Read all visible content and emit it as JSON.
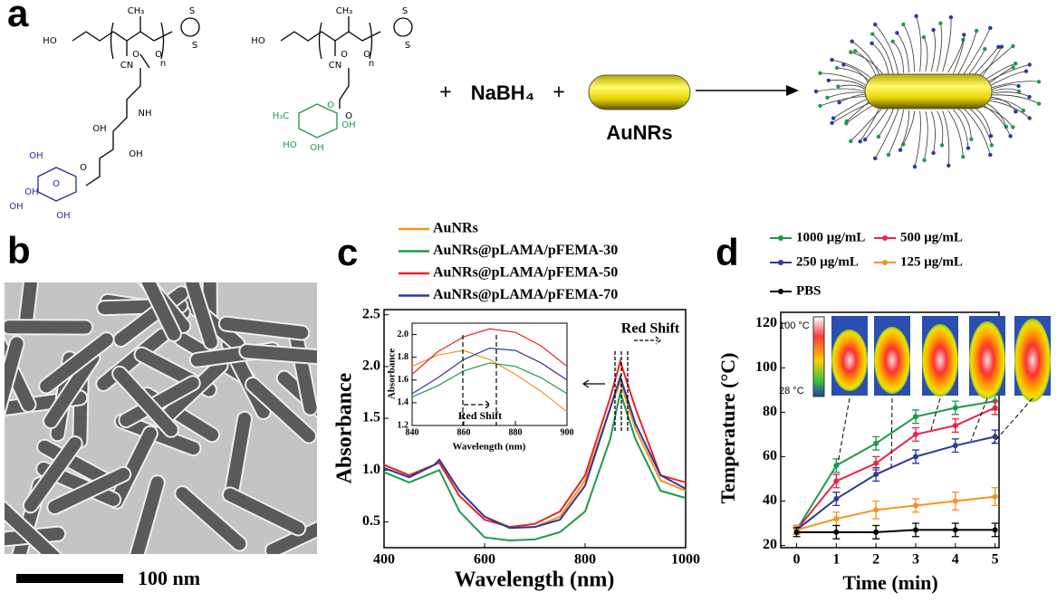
{
  "panel_labels": [
    "a",
    "b",
    "c",
    "d"
  ],
  "scheme": {
    "polymer_1": [
      "HO",
      "CH₃",
      "CN",
      "O",
      "O",
      "n",
      "S",
      "S",
      "NH",
      "OH",
      "OH",
      "O",
      "OH",
      "O",
      "OH",
      "OH",
      "OH"
    ],
    "polymer_2": [
      "HO",
      "CH₃",
      "CN",
      "O",
      "O",
      "n",
      "S",
      "S",
      "O",
      "H₃C",
      "O",
      "OH",
      "HO",
      "OH"
    ],
    "operators": [
      "+",
      "+"
    ],
    "reagent": "NaBH₄",
    "rod_label": "AuNRs"
  },
  "scale_bar": "100 nm",
  "thermal_scale": [
    "100 °C",
    "28 °C"
  ],
  "chart_data": [
    {
      "type": "line",
      "x_label": "Wavelength (nm)",
      "y_label": "Absorbance",
      "annotation": "Red Shift",
      "x": [
        400,
        450,
        500,
        510,
        550,
        600,
        650,
        700,
        750,
        800,
        850,
        870,
        900,
        950,
        1000
      ],
      "series": [
        {
          "name": "AuNRs",
          "color": "#f7921e",
          "values": [
            1.05,
            0.95,
            1.05,
            1.08,
            0.8,
            0.55,
            0.45,
            0.45,
            0.55,
            0.9,
            1.6,
            1.85,
            1.4,
            0.9,
            0.8
          ]
        },
        {
          "name": "AuNRs@pLAMA/pFEMA-30",
          "color": "#1d9a49",
          "values": [
            0.98,
            0.88,
            0.98,
            1.0,
            0.6,
            0.35,
            0.32,
            0.33,
            0.4,
            0.6,
            1.3,
            1.75,
            1.3,
            0.8,
            0.73
          ]
        },
        {
          "name": "AuNRs@pLAMA/pFEMA-50",
          "color": "#ec2227",
          "values": [
            1.05,
            0.95,
            1.05,
            1.07,
            0.75,
            0.52,
            0.45,
            0.48,
            0.6,
            0.95,
            1.7,
            2.05,
            1.6,
            0.95,
            0.88
          ]
        },
        {
          "name": "AuNRs@pLAMA/pFEMA-70",
          "color": "#2b3a9a",
          "values": [
            1.02,
            0.93,
            1.05,
            1.1,
            0.8,
            0.55,
            0.44,
            0.45,
            0.52,
            0.85,
            1.6,
            1.9,
            1.45,
            0.95,
            0.82
          ]
        }
      ],
      "xlim": [
        400,
        1000
      ],
      "xticks": [
        400,
        600,
        800,
        1000
      ],
      "ylim": [
        0.25,
        2.55
      ],
      "yticks": [
        0.5,
        {
          "value": 1,
          "label": "1.0"
        },
        1.5,
        {
          "value": 2,
          "label": "2.0"
        },
        2.5
      ]
    },
    {
      "type": "line",
      "x_label": "Wavelength (nm)",
      "y_label": "Absorbance",
      "annotation": "Red Shift",
      "x": [
        840,
        850,
        860,
        870,
        880,
        890,
        900
      ],
      "series": [
        {
          "color": "#f7921e",
          "values": [
            1.72,
            1.82,
            1.86,
            1.78,
            1.65,
            1.5,
            1.32
          ]
        },
        {
          "color": "#1d9a49",
          "values": [
            1.45,
            1.55,
            1.68,
            1.75,
            1.72,
            1.62,
            1.48
          ]
        },
        {
          "color": "#ec2227",
          "values": [
            1.65,
            1.85,
            1.98,
            2.05,
            2.02,
            1.9,
            1.72
          ]
        },
        {
          "color": "#2b3a9a",
          "values": [
            1.48,
            1.62,
            1.78,
            1.88,
            1.86,
            1.75,
            1.6
          ]
        }
      ],
      "xlim": [
        840,
        900
      ],
      "xticks": [
        840,
        860,
        880,
        900
      ],
      "ylim": [
        1.2,
        2.1
      ],
      "yticks": [
        1.2,
        1.4,
        1.6,
        1.8,
        {
          "value": 2,
          "label": "2.0"
        }
      ]
    },
    {
      "type": "line",
      "x_label": "Time (min)",
      "y_label": "Temperature (°C)",
      "x": [
        0,
        1,
        2,
        3,
        4,
        5
      ],
      "series": [
        {
          "name": "1000 μg/mL",
          "color": "#1d9a49",
          "values": [
            27,
            56,
            66,
            78,
            82,
            85
          ],
          "errors": [
            2,
            3,
            3,
            3,
            3,
            4
          ]
        },
        {
          "name": "500 μg/mL",
          "color": "#ec2247",
          "values": [
            27,
            49,
            57,
            70,
            74,
            82
          ],
          "errors": [
            2,
            3,
            3,
            3,
            3,
            3
          ]
        },
        {
          "name": "250 μg/mL",
          "color": "#2b3a9a",
          "values": [
            27,
            41,
            52,
            60,
            65,
            69
          ],
          "errors": [
            2,
            3,
            3,
            3,
            3,
            3
          ]
        },
        {
          "name": "125 μg/mL",
          "color": "#f7921e",
          "values": [
            27,
            32,
            36,
            38,
            40,
            42
          ],
          "errors": [
            2,
            3,
            4,
            3,
            4,
            4
          ]
        },
        {
          "name": "PBS",
          "color": "#000000",
          "values": [
            26,
            26,
            26,
            27,
            27,
            27
          ],
          "errors": [
            2,
            3,
            3,
            3,
            3,
            3
          ]
        }
      ],
      "xlim": [
        -0.4,
        5.1
      ],
      "xticks": [
        0,
        1,
        2,
        3,
        4,
        5
      ],
      "ylim": [
        19,
        125
      ],
      "yticks": [
        20,
        40,
        60,
        80,
        100,
        120
      ]
    }
  ]
}
